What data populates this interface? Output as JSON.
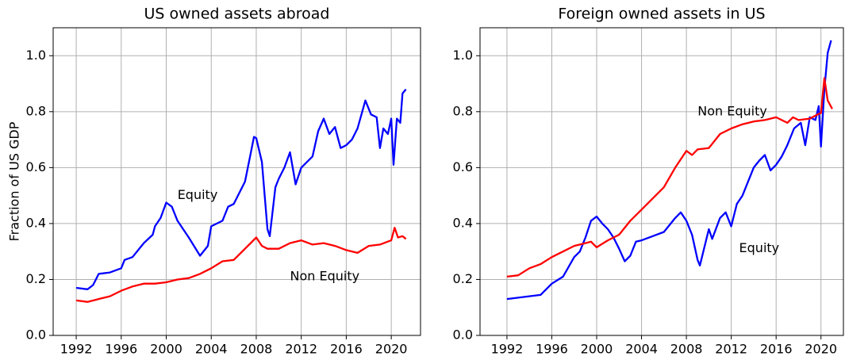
{
  "chart_data": [
    {
      "type": "line",
      "title": "US owned assets abroad",
      "ylabel": "Fraction of US GDP",
      "xlim": [
        1989.95,
        2022.6
      ],
      "ylim": [
        0,
        1.1
      ],
      "grid": true,
      "xticks": [
        1992,
        1996,
        2000,
        2004,
        2008,
        2012,
        2016,
        2020
      ],
      "yticks": [
        {
          "value": 0,
          "label": "0.0"
        },
        0.2,
        0.4,
        0.6,
        0.8,
        {
          "value": 1,
          "label": "1.0"
        }
      ],
      "series": [
        {
          "name": "Equity",
          "color": "#0000ff",
          "x": [
            1992,
            1993,
            1993.5,
            1994,
            1995,
            1996,
            1996.3,
            1997,
            1998,
            1998.8,
            1999,
            1999.5,
            2000,
            2000.5,
            2001,
            2002,
            2003,
            2003.7,
            2004,
            2005,
            2005.5,
            2006,
            2007,
            2007.5,
            2007.8,
            2008,
            2008.5,
            2009,
            2009.2,
            2009.7,
            2010,
            2010.5,
            2011,
            2011.5,
            2012,
            2013,
            2013.5,
            2014,
            2014.5,
            2015,
            2015.5,
            2016,
            2016.5,
            2017,
            2017.7,
            2018.2,
            2018.7,
            2019,
            2019.3,
            2019.7,
            2020,
            2020.2,
            2020.5,
            2020.8,
            2021,
            2021.3
          ],
          "values": [
            0.17,
            0.165,
            0.18,
            0.22,
            0.225,
            0.24,
            0.27,
            0.28,
            0.33,
            0.36,
            0.39,
            0.42,
            0.475,
            0.46,
            0.41,
            0.35,
            0.285,
            0.32,
            0.39,
            0.41,
            0.46,
            0.47,
            0.55,
            0.65,
            0.71,
            0.705,
            0.62,
            0.38,
            0.355,
            0.53,
            0.56,
            0.6,
            0.655,
            0.54,
            0.6,
            0.64,
            0.73,
            0.775,
            0.72,
            0.745,
            0.67,
            0.68,
            0.7,
            0.74,
            0.84,
            0.79,
            0.78,
            0.67,
            0.74,
            0.72,
            0.775,
            0.61,
            0.775,
            0.76,
            0.865,
            0.88
          ]
        },
        {
          "name": "Non Equity",
          "color": "#ff0000",
          "x": [
            1992,
            1993,
            1994,
            1995,
            1996,
            1997,
            1998,
            1999,
            2000,
            2001,
            2002,
            2003,
            2004,
            2005,
            2006,
            2007,
            2008,
            2008.5,
            2009,
            2010,
            2011,
            2012,
            2013,
            2014,
            2015,
            2016,
            2017,
            2018,
            2019,
            2020,
            2020.3,
            2020.6,
            2021,
            2021.3
          ],
          "values": [
            0.125,
            0.12,
            0.13,
            0.14,
            0.16,
            0.175,
            0.185,
            0.185,
            0.19,
            0.2,
            0.205,
            0.22,
            0.24,
            0.265,
            0.27,
            0.31,
            0.35,
            0.32,
            0.31,
            0.31,
            0.33,
            0.34,
            0.325,
            0.33,
            0.32,
            0.305,
            0.295,
            0.32,
            0.325,
            0.34,
            0.385,
            0.35,
            0.355,
            0.345
          ]
        }
      ]
    },
    {
      "type": "line",
      "title": "Foreign owned assets in US",
      "xlim": [
        1989.6,
        2022.0
      ],
      "ylim": [
        0,
        1.1
      ],
      "grid": true,
      "xticks": [
        1992,
        1996,
        2000,
        2004,
        2008,
        2012,
        2016,
        2020
      ],
      "yticks": [
        {
          "value": 0,
          "label": "0.0"
        },
        0.2,
        0.4,
        0.6,
        0.8,
        {
          "value": 1,
          "label": "1.0"
        }
      ],
      "series": [
        {
          "name": "Equity",
          "color": "#0000ff",
          "x": [
            1992,
            1993,
            1994,
            1995,
            1996,
            1997,
            1998,
            1998.5,
            1999,
            1999.5,
            2000,
            2000.5,
            2001,
            2001.5,
            2002,
            2002.5,
            2003,
            2003.5,
            2004,
            2005,
            2006,
            2007,
            2007.5,
            2008,
            2008.5,
            2009,
            2009.2,
            2010,
            2010.3,
            2011,
            2011.5,
            2012,
            2012.5,
            2013,
            2014,
            2014.5,
            2015,
            2015.5,
            2016,
            2016.5,
            2017,
            2017.6,
            2018.2,
            2018.6,
            2019,
            2019.5,
            2019.8,
            2020,
            2020.3,
            2020.6,
            2020.9
          ],
          "values": [
            0.13,
            0.135,
            0.14,
            0.145,
            0.185,
            0.21,
            0.28,
            0.3,
            0.35,
            0.41,
            0.425,
            0.4,
            0.38,
            0.35,
            0.31,
            0.265,
            0.285,
            0.335,
            0.34,
            0.355,
            0.37,
            0.42,
            0.44,
            0.41,
            0.36,
            0.27,
            0.25,
            0.38,
            0.345,
            0.42,
            0.44,
            0.39,
            0.47,
            0.5,
            0.6,
            0.625,
            0.645,
            0.59,
            0.61,
            0.64,
            0.68,
            0.74,
            0.76,
            0.68,
            0.78,
            0.77,
            0.82,
            0.675,
            0.88,
            1.01,
            1.055
          ]
        },
        {
          "name": "Non Equity",
          "color": "#ff0000",
          "x": [
            1992,
            1993,
            1994,
            1995,
            1996,
            1997,
            1998,
            1999,
            1999.5,
            2000,
            2001,
            2002,
            2003,
            2004,
            2005,
            2006,
            2007,
            2008,
            2008.5,
            2009,
            2010,
            2011,
            2012,
            2013,
            2014,
            2015,
            2016,
            2017,
            2017.5,
            2018,
            2019,
            2019.7,
            2020,
            2020.3,
            2020.6,
            2021
          ],
          "values": [
            0.21,
            0.215,
            0.24,
            0.255,
            0.28,
            0.3,
            0.32,
            0.33,
            0.335,
            0.315,
            0.34,
            0.36,
            0.41,
            0.45,
            0.49,
            0.53,
            0.6,
            0.66,
            0.645,
            0.665,
            0.67,
            0.72,
            0.74,
            0.755,
            0.765,
            0.77,
            0.78,
            0.76,
            0.78,
            0.77,
            0.775,
            0.79,
            0.795,
            0.92,
            0.84,
            0.81
          ]
        }
      ]
    }
  ]
}
